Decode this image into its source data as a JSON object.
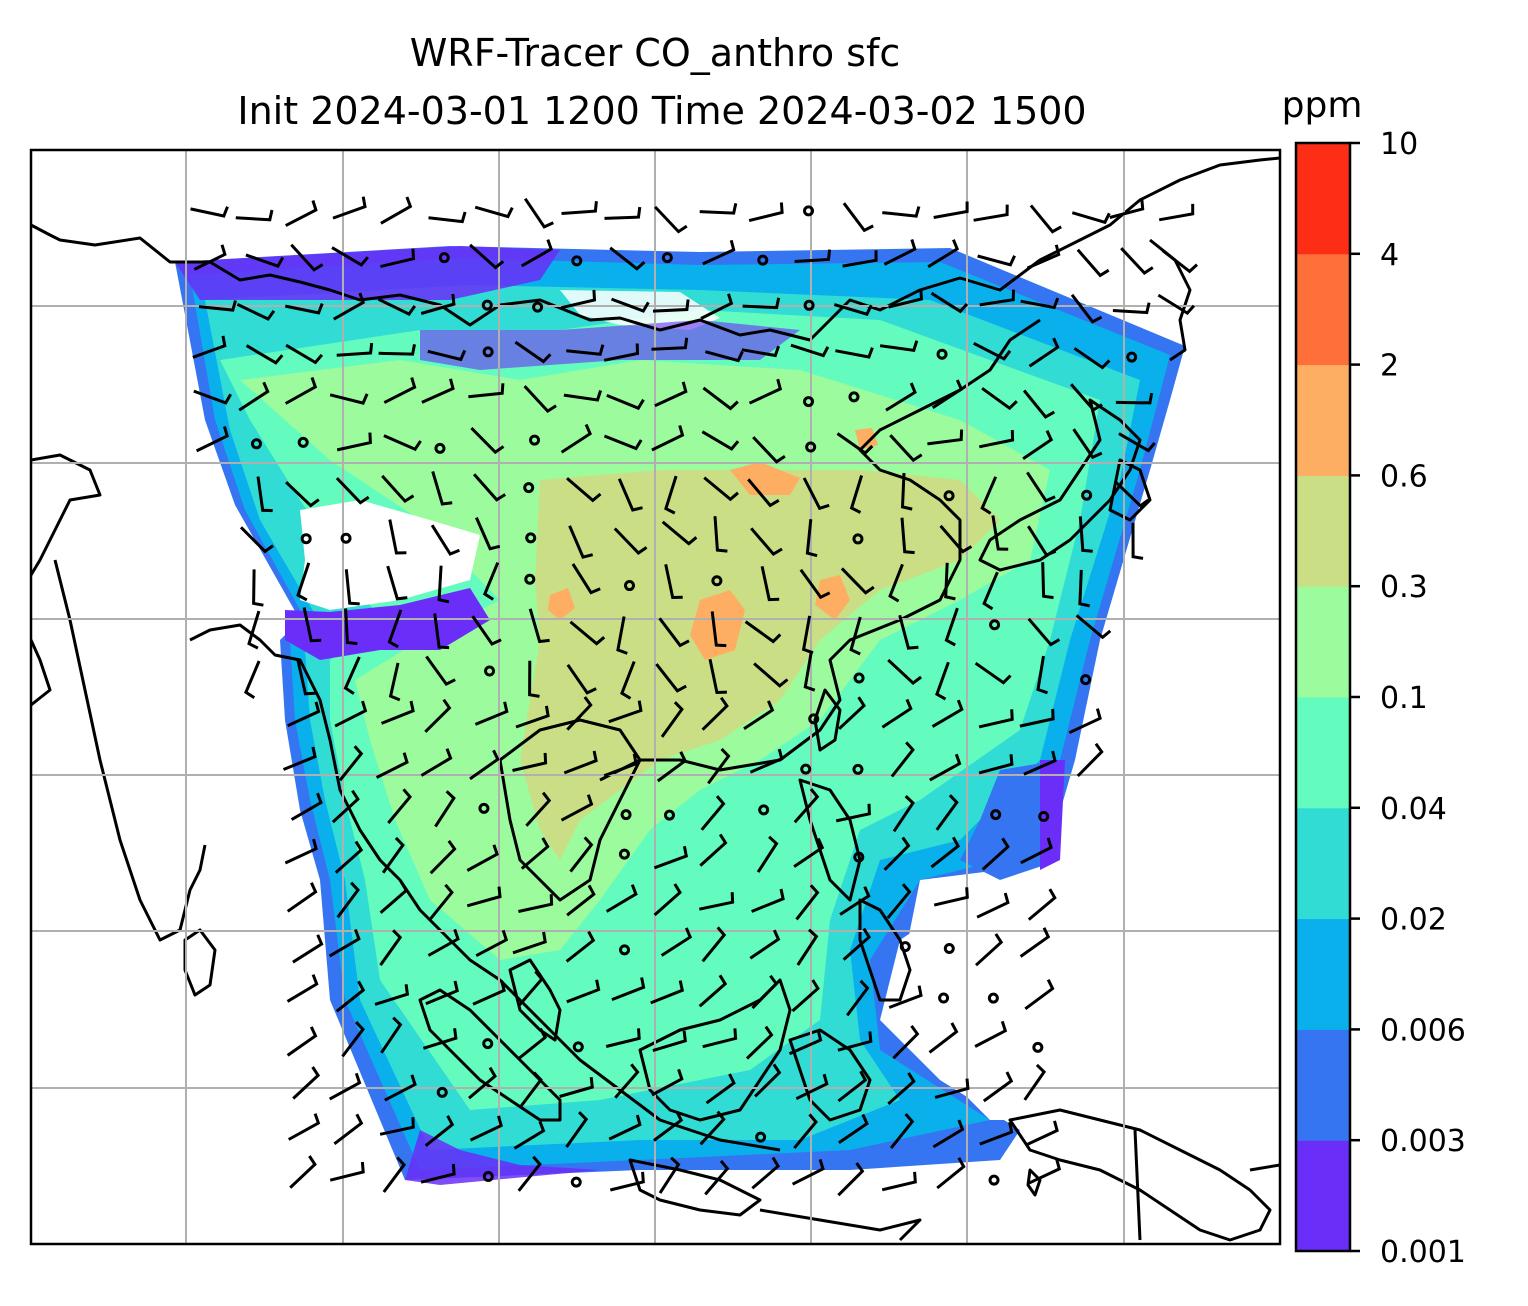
{
  "figure": {
    "title_line1": "WRF-Tracer CO_anthro sfc",
    "title_line2": "Init 2024-03-01 1200 Time 2024-03-02 1500"
  },
  "colorbar": {
    "unit": "ppm",
    "tick_labels": [
      "0.001",
      "0.003",
      "0.006",
      "0.02",
      "0.04",
      "0.1",
      "0.3",
      "0.6",
      "2",
      "4",
      "10"
    ],
    "colors": [
      "#6a2ef8",
      "#3575f1",
      "#09b0ec",
      "#30dcd3",
      "#63fbbe",
      "#9bfb9d",
      "#cadf85",
      "#feae63",
      "#fe6f3a",
      "#fe2d16"
    ]
  },
  "map": {
    "projection": "Lambert conformal",
    "field": "CO_anthro surface concentration",
    "overlay": "wind barbs",
    "gridlines": true,
    "coastlines": true
  }
}
